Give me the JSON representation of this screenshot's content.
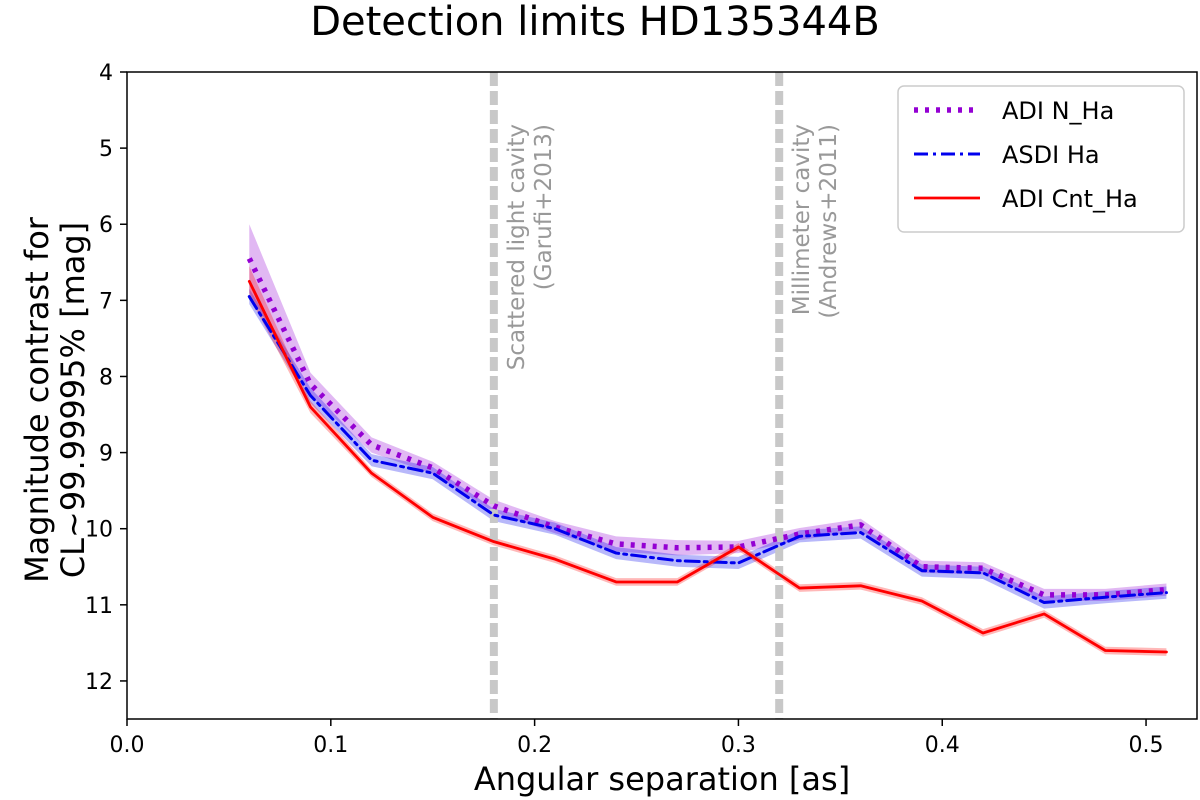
{
  "chart_data": {
    "type": "line",
    "title": "Detection limits HD135344B",
    "xlabel": "Angular separation [as]",
    "ylabel": [
      "Magnitude contrast for",
      "CL~99.99995% [mag]"
    ],
    "xlim": [
      0.0,
      0.525
    ],
    "ylim": [
      12.5,
      4.0
    ],
    "y_inverted": true,
    "xticks": [
      0.0,
      0.1,
      0.2,
      0.3,
      0.4,
      0.5
    ],
    "xtick_labels": [
      "0.0",
      "0.1",
      "0.2",
      "0.3",
      "0.4",
      "0.5"
    ],
    "yticks": [
      4,
      5,
      6,
      7,
      8,
      9,
      10,
      11,
      12
    ],
    "ytick_labels": [
      "4",
      "5",
      "6",
      "7",
      "8",
      "9",
      "10",
      "11",
      "12"
    ],
    "grid": false,
    "legend_position": "top-right",
    "x": [
      0.06,
      0.09,
      0.12,
      0.15,
      0.18,
      0.21,
      0.24,
      0.27,
      0.3,
      0.33,
      0.36,
      0.39,
      0.42,
      0.45,
      0.48,
      0.51
    ],
    "series": [
      {
        "name": "ADI N_Ha",
        "color": "#9400d3",
        "style": "dotted",
        "values": [
          6.45,
          8.1,
          8.9,
          9.2,
          9.7,
          9.98,
          10.2,
          10.25,
          10.24,
          10.07,
          9.95,
          10.5,
          10.52,
          10.87,
          10.87,
          10.8
        ],
        "band": [
          0.45,
          0.15,
          0.1,
          0.08,
          0.08,
          0.08,
          0.1,
          0.1,
          0.08,
          0.08,
          0.08,
          0.08,
          0.08,
          0.08,
          0.08,
          0.08
        ]
      },
      {
        "name": "ASDI Ha",
        "color": "#0000ee",
        "style": "dashdot",
        "values": [
          6.95,
          8.25,
          9.1,
          9.27,
          9.82,
          10.0,
          10.32,
          10.42,
          10.45,
          10.1,
          10.05,
          10.55,
          10.58,
          10.97,
          10.9,
          10.84
        ],
        "band": [
          0.1,
          0.1,
          0.08,
          0.08,
          0.08,
          0.08,
          0.08,
          0.08,
          0.08,
          0.08,
          0.08,
          0.08,
          0.08,
          0.08,
          0.08,
          0.08
        ]
      },
      {
        "name": "ADI Cnt_Ha",
        "color": "#ff0000",
        "style": "solid",
        "values": [
          6.75,
          8.4,
          9.27,
          9.85,
          10.17,
          10.4,
          10.7,
          10.7,
          10.24,
          10.78,
          10.75,
          10.95,
          11.37,
          11.12,
          11.6,
          11.62
        ],
        "band": [
          0.2,
          0.08,
          0.05,
          0.05,
          0.05,
          0.05,
          0.05,
          0.05,
          0.05,
          0.05,
          0.05,
          0.05,
          0.05,
          0.05,
          0.05,
          0.05
        ]
      }
    ],
    "vlines": [
      {
        "x": 0.18,
        "label1": "Scattered light cavity",
        "label2": "(Garufi+2013)",
        "color": "#c8c8c8"
      },
      {
        "x": 0.32,
        "label1": "Millimeter cavity",
        "label2": "(Andrews+2011)",
        "color": "#c8c8c8"
      }
    ]
  }
}
